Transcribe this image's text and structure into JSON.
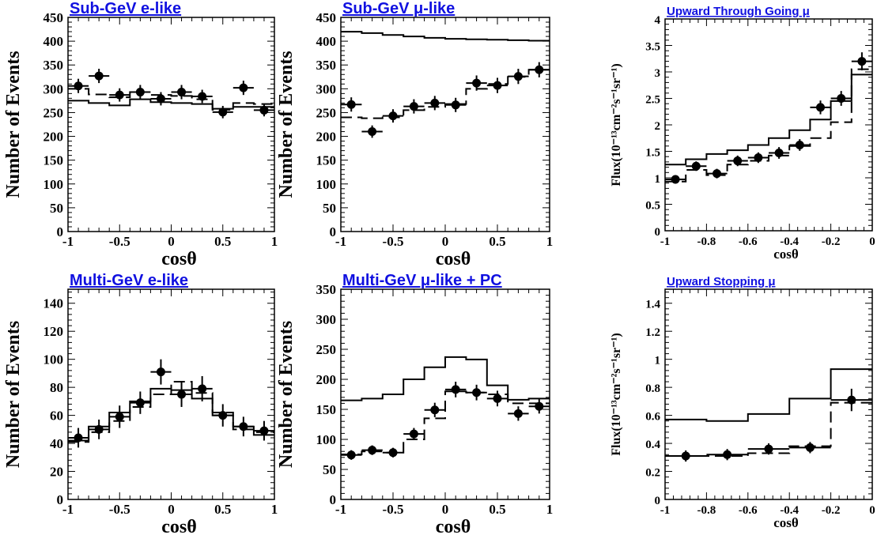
{
  "chart_data": [
    {
      "type": "histogram-with-points",
      "title": "Sub-GeV e-like",
      "xlabel": "cosθ",
      "ylabel": "Number of Events",
      "xlim": [
        -1,
        1
      ],
      "ylim": [
        0,
        450
      ],
      "xticks": [
        "-1",
        "-0.5",
        "0",
        "0.5",
        "1"
      ],
      "yticks": [
        "0",
        "50",
        "100",
        "150",
        "200",
        "250",
        "300",
        "350",
        "400",
        "450"
      ],
      "bin_edges": [
        -1,
        -0.8,
        -0.6,
        -0.4,
        -0.2,
        0,
        0.2,
        0.4,
        0.6,
        0.8,
        1
      ],
      "series": [
        {
          "style": "solid",
          "values": [
            275,
            270,
            265,
            278,
            272,
            270,
            268,
            258,
            262,
            262
          ]
        },
        {
          "style": "dashed",
          "values": [
            300,
            288,
            282,
            293,
            287,
            285,
            278,
            256,
            270,
            268
          ]
        },
        {
          "style": "points",
          "x": [
            -0.9,
            -0.7,
            -0.5,
            -0.3,
            -0.1,
            0.1,
            0.3,
            0.5,
            0.7,
            0.9
          ],
          "y": [
            306,
            327,
            287,
            293,
            279,
            293,
            284,
            251,
            302,
            255
          ],
          "err": [
            15,
            15,
            14,
            15,
            14,
            15,
            14,
            13,
            15,
            13
          ]
        }
      ]
    },
    {
      "type": "histogram-with-points",
      "title": "Sub-GeV μ-like",
      "xlabel": "cosθ",
      "ylabel": "Number of Events",
      "xlim": [
        -1,
        1
      ],
      "ylim": [
        0,
        450
      ],
      "xticks": [
        "-1",
        "-0.5",
        "0",
        "0.5",
        "1"
      ],
      "yticks": [
        "0",
        "50",
        "100",
        "150",
        "200",
        "250",
        "300",
        "350",
        "400",
        "450"
      ],
      "bin_edges": [
        -1,
        -0.8,
        -0.6,
        -0.4,
        -0.2,
        0,
        0.2,
        0.4,
        0.6,
        0.8,
        1
      ],
      "series": [
        {
          "style": "solid",
          "values": [
            420,
            417,
            413,
            410,
            407,
            405,
            404,
            403,
            402,
            401
          ]
        },
        {
          "style": "dashed",
          "values": [
            240,
            238,
            240,
            255,
            262,
            268,
            300,
            310,
            325,
            340
          ]
        },
        {
          "style": "points",
          "x": [
            -0.9,
            -0.7,
            -0.5,
            -0.3,
            -0.1,
            0.1,
            0.3,
            0.5,
            0.7,
            0.9
          ],
          "y": [
            267,
            210,
            243,
            263,
            270,
            266,
            312,
            307,
            326,
            340
          ],
          "err": [
            15,
            13,
            14,
            15,
            15,
            15,
            16,
            16,
            16,
            16
          ]
        }
      ]
    },
    {
      "type": "histogram-with-points",
      "title": "Upward Through Going μ",
      "xlabel": "cosθ",
      "ylabel": "Flux(10⁻¹³cm⁻²s⁻¹sr⁻¹)",
      "xlim": [
        -1,
        0
      ],
      "ylim": [
        0,
        4
      ],
      "xticks": [
        "-1",
        "-0.8",
        "-0.6",
        "-0.4",
        "-0.2",
        "0"
      ],
      "yticks": [
        "0",
        "0.5",
        "1",
        "1.5",
        "2",
        "2.5",
        "3",
        "3.5",
        "4"
      ],
      "bin_edges": [
        -1,
        -0.9,
        -0.8,
        -0.7,
        -0.6,
        -0.5,
        -0.4,
        -0.3,
        -0.2,
        -0.1,
        0
      ],
      "series": [
        {
          "style": "solid",
          "values": [
            1.25,
            1.35,
            1.45,
            1.52,
            1.62,
            1.75,
            1.9,
            2.1,
            2.45,
            2.95
          ]
        },
        {
          "style": "dashed",
          "values": [
            0.93,
            1.15,
            1.05,
            1.25,
            1.32,
            1.42,
            1.6,
            1.75,
            2.05,
            3.05
          ]
        },
        {
          "style": "points",
          "x": [
            -0.95,
            -0.85,
            -0.75,
            -0.65,
            -0.55,
            -0.45,
            -0.35,
            -0.25,
            -0.15,
            -0.05
          ],
          "y": [
            0.97,
            1.22,
            1.08,
            1.32,
            1.38,
            1.47,
            1.62,
            2.33,
            2.5,
            3.2
          ],
          "err": [
            0.08,
            0.09,
            0.09,
            0.1,
            0.1,
            0.11,
            0.11,
            0.13,
            0.14,
            0.17
          ]
        }
      ]
    },
    {
      "type": "histogram-with-points",
      "title": "Multi-GeV e-like",
      "xlabel": "cosθ",
      "ylabel": "Number of Events",
      "xlim": [
        -1,
        1
      ],
      "ylim": [
        0,
        150
      ],
      "xticks": [
        "-1",
        "-0.5",
        "0",
        "0.5",
        "1"
      ],
      "yticks": [
        "0",
        "20",
        "40",
        "60",
        "80",
        "100",
        "120",
        "140"
      ],
      "bin_edges": [
        -1,
        -0.8,
        -0.6,
        -0.4,
        -0.2,
        0,
        0.2,
        0.4,
        0.6,
        0.8,
        1
      ],
      "series": [
        {
          "style": "solid",
          "values": [
            42,
            52,
            62,
            70,
            79,
            78,
            72,
            60,
            52,
            46
          ]
        },
        {
          "style": "dashed",
          "values": [
            41,
            48,
            56,
            66,
            75,
            84,
            76,
            62,
            50,
            48
          ]
        },
        {
          "style": "points",
          "x": [
            -0.9,
            -0.7,
            -0.5,
            -0.3,
            -0.1,
            0.1,
            0.3,
            0.5,
            0.7,
            0.9
          ],
          "y": [
            44,
            50,
            59,
            69,
            91,
            75,
            79,
            60,
            52,
            49
          ],
          "err": [
            7,
            7,
            8,
            8,
            9,
            9,
            9,
            8,
            7,
            7
          ]
        }
      ]
    },
    {
      "type": "histogram-with-points",
      "title": "Multi-GeV μ-like + PC",
      "xlabel": "cosθ",
      "ylabel": "Number of Events",
      "xlim": [
        -1,
        1
      ],
      "ylim": [
        0,
        350
      ],
      "xticks": [
        "-1",
        "-0.5",
        "0",
        "0.5",
        "1"
      ],
      "yticks": [
        "0",
        "50",
        "100",
        "150",
        "200",
        "250",
        "300",
        "350"
      ],
      "bin_edges": [
        -1,
        -0.8,
        -0.6,
        -0.4,
        -0.2,
        0,
        0.2,
        0.4,
        0.6,
        0.8,
        1
      ],
      "series": [
        {
          "style": "solid",
          "values": [
            165,
            168,
            175,
            200,
            220,
            237,
            233,
            190,
            166,
            168
          ]
        },
        {
          "style": "dashed",
          "values": [
            75,
            80,
            78,
            100,
            135,
            180,
            178,
            175,
            160,
            160
          ]
        },
        {
          "style": "points",
          "x": [
            -0.9,
            -0.7,
            -0.5,
            -0.3,
            -0.1,
            0.1,
            0.3,
            0.5,
            0.7,
            0.9
          ],
          "y": [
            74,
            82,
            78,
            109,
            149,
            183,
            178,
            168,
            143,
            155
          ],
          "err": [
            8,
            8,
            8,
            10,
            12,
            13,
            13,
            13,
            12,
            12
          ]
        }
      ]
    },
    {
      "type": "histogram-with-points",
      "title": "Upward Stopping μ",
      "xlabel": "cosθ",
      "ylabel": "Flux(10⁻¹³cm⁻²s⁻¹sr⁻¹)",
      "xlim": [
        -1,
        0
      ],
      "ylim": [
        0,
        1.5
      ],
      "xticks": [
        "-1",
        "-0.8",
        "-0.6",
        "-0.4",
        "-0.2",
        "0"
      ],
      "yticks": [
        "0",
        "0.2",
        "0.4",
        "0.6",
        "0.8",
        "1",
        "1.2",
        "1.4"
      ],
      "bin_edges": [
        -1,
        -0.8,
        -0.6,
        -0.4,
        -0.2,
        0
      ],
      "series": [
        {
          "style": "solid",
          "values": [
            0.57,
            0.56,
            0.61,
            0.72,
            0.93
          ]
        },
        {
          "style": "dashed",
          "values": [
            0.31,
            0.31,
            0.33,
            0.38,
            0.69
          ]
        },
        {
          "style": "points",
          "x": [
            -0.9,
            -0.7,
            -0.5,
            -0.3,
            -0.1
          ],
          "y": [
            0.31,
            0.32,
            0.36,
            0.37,
            0.71
          ],
          "err": [
            0.04,
            0.04,
            0.04,
            0.04,
            0.08
          ]
        }
      ]
    }
  ]
}
